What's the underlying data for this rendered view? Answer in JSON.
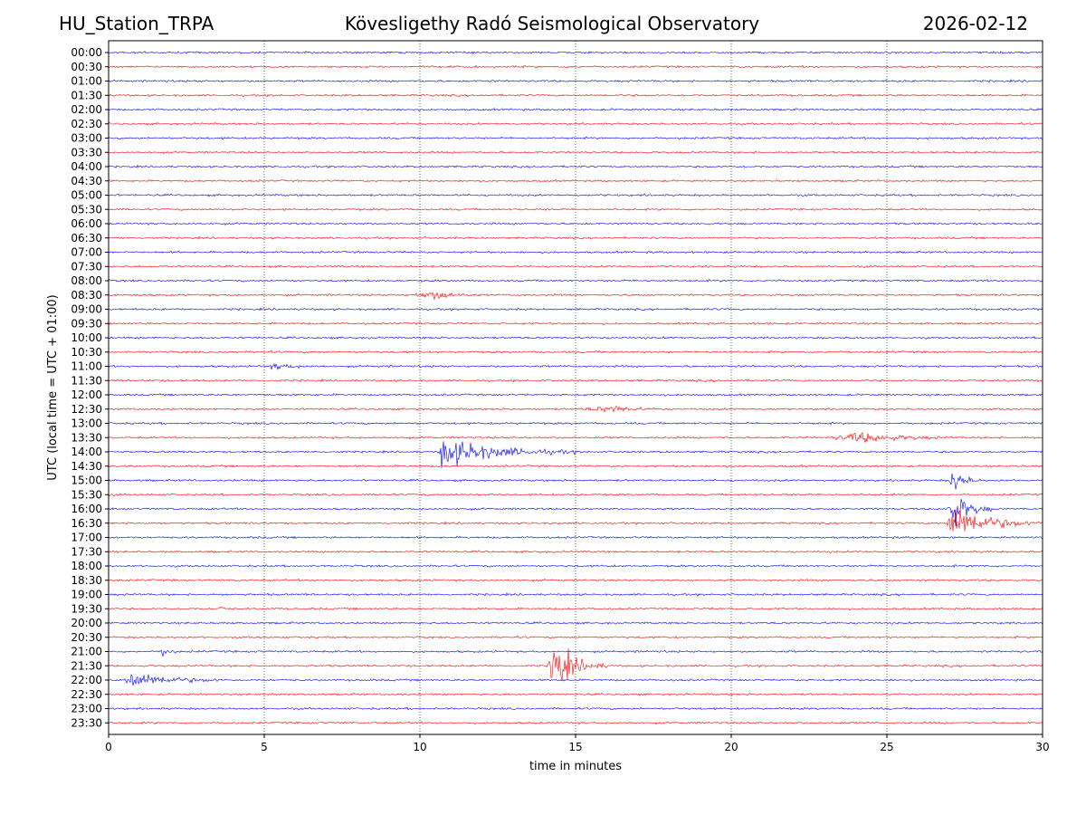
{
  "header": {
    "station": "HU_Station_TRPA",
    "title": "Kövesligethy Radó Seismological Observatory",
    "date": "2026-02-12"
  },
  "chart_data": {
    "type": "line",
    "title": "Kövesligethy Radó Seismological Observatory",
    "xlabel": "time in minutes",
    "ylabel": "UTC (local time = UTC + 01:00)",
    "xlim": [
      0,
      30
    ],
    "x_ticks": [
      0,
      5,
      10,
      15,
      20,
      25,
      30
    ],
    "grid": "vertical dotted at x ticks",
    "colors": [
      "#0000ff",
      "#ff0000"
    ],
    "rows": [
      "00:00",
      "00:30",
      "01:00",
      "01:30",
      "02:00",
      "02:30",
      "03:00",
      "03:30",
      "04:00",
      "04:30",
      "05:00",
      "05:30",
      "06:00",
      "06:30",
      "07:00",
      "07:30",
      "08:00",
      "08:30",
      "09:00",
      "09:30",
      "10:00",
      "10:30",
      "11:00",
      "11:30",
      "12:00",
      "12:30",
      "13:00",
      "13:30",
      "14:00",
      "14:30",
      "15:00",
      "15:30",
      "16:00",
      "16:30",
      "17:00",
      "17:30",
      "18:00",
      "18:30",
      "19:00",
      "19:30",
      "20:00",
      "20:30",
      "21:00",
      "21:30",
      "22:00",
      "22:30",
      "23:00",
      "23:30"
    ],
    "events": [
      {
        "row": "08:30",
        "start": 9.5,
        "peak": 10.7,
        "end": 12.0,
        "amplitude": 0.4
      },
      {
        "row": "11:00",
        "start": 5.0,
        "peak": 5.4,
        "end": 7.0,
        "amplitude": 0.25
      },
      {
        "row": "12:30",
        "start": 15.0,
        "peak": 16.3,
        "end": 18.0,
        "amplitude": 0.3
      },
      {
        "row": "13:30",
        "start": 23.1,
        "peak": 24.2,
        "end": 27.6,
        "amplitude": 0.5
      },
      {
        "row": "14:00",
        "start": 10.6,
        "peak": 10.7,
        "end": 15.0,
        "amplitude": 1.6
      },
      {
        "row": "15:00",
        "start": 27.0,
        "peak": 27.1,
        "end": 28.0,
        "amplitude": 1.4
      },
      {
        "row": "16:00",
        "start": 26.9,
        "peak": 27.1,
        "end": 28.5,
        "amplitude": 2.0
      },
      {
        "row": "16:30",
        "start": 26.9,
        "peak": 27.1,
        "end": 30.0,
        "amplitude": 2.0
      },
      {
        "row": "21:00",
        "start": 1.6,
        "peak": 1.7,
        "end": 2.2,
        "amplitude": 0.6
      },
      {
        "row": "21:30",
        "start": 14.1,
        "peak": 14.3,
        "end": 16.0,
        "amplitude": 2.6
      },
      {
        "row": "22:00",
        "start": 0.5,
        "peak": 0.7,
        "end": 3.8,
        "amplitude": 0.9
      },
      {
        "row": "19:30",
        "start": 3.55,
        "peak": 3.6,
        "end": 3.7,
        "amplitude": 0.4
      }
    ]
  }
}
